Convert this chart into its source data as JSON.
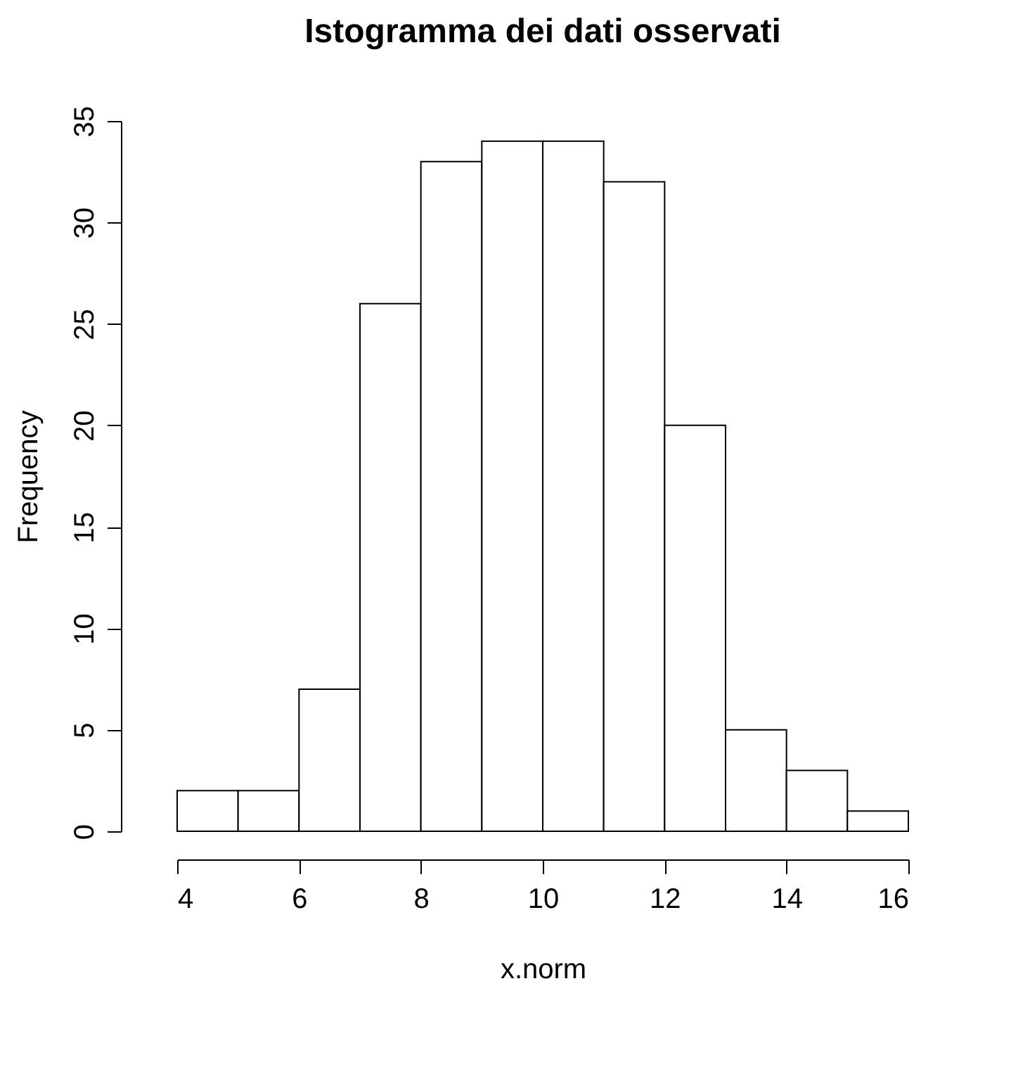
{
  "chart_data": {
    "type": "histogram",
    "title": "Istogramma dei dati osservati",
    "xlabel": "x.norm",
    "ylabel": "Frequency",
    "bins": [
      4,
      5,
      6,
      7,
      8,
      9,
      10,
      11,
      12,
      13,
      14,
      15,
      16
    ],
    "values": [
      2,
      2,
      7,
      26,
      33,
      34,
      34,
      32,
      20,
      5,
      3,
      1
    ],
    "color": "#ffffff",
    "xlim": [
      4,
      16
    ],
    "xticks": [
      4,
      6,
      8,
      10,
      12,
      14,
      16
    ],
    "ylim": [
      0,
      35
    ],
    "yticks": [
      0,
      5,
      10,
      15,
      20,
      25,
      30,
      35
    ],
    "grid": false
  }
}
